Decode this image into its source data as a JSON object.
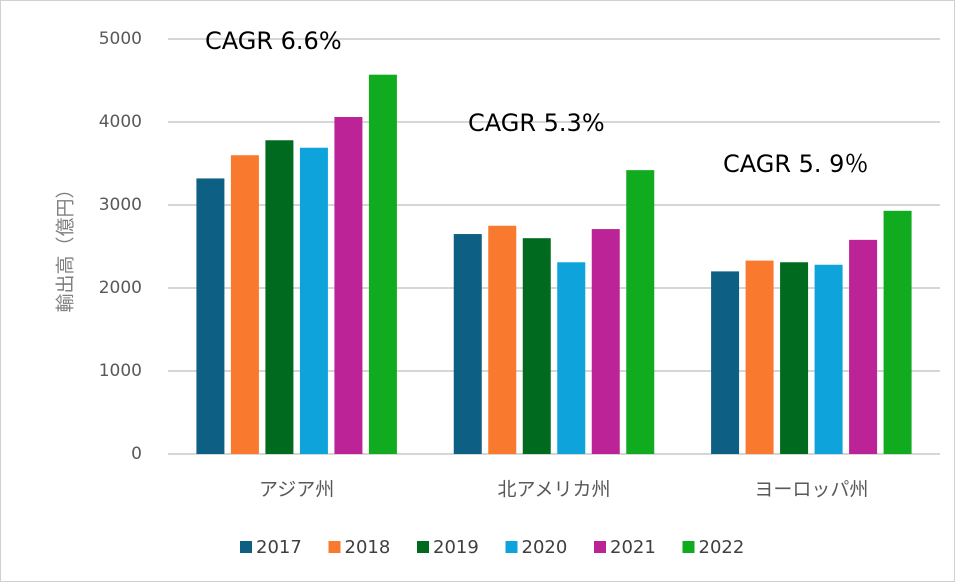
{
  "chart_data": {
    "type": "bar",
    "ylabel": "輸出高（億円）",
    "categories": [
      "アジア州",
      "北アメリカ州",
      "ヨーロッパ州"
    ],
    "series": [
      {
        "name": "2017",
        "color": "#0e5f84",
        "values": [
          3320,
          2650,
          2200
        ]
      },
      {
        "name": "2018",
        "color": "#f97a2e",
        "values": [
          3600,
          2750,
          2330
        ]
      },
      {
        "name": "2019",
        "color": "#006b1e",
        "values": [
          3780,
          2600,
          2310
        ]
      },
      {
        "name": "2020",
        "color": "#0fa3dc",
        "values": [
          3690,
          2310,
          2280
        ]
      },
      {
        "name": "2021",
        "color": "#bb2397",
        "values": [
          4060,
          2710,
          2580
        ]
      },
      {
        "name": "2022",
        "color": "#10ab1f",
        "values": [
          4570,
          3420,
          2930
        ]
      }
    ],
    "annotations": [
      "CAGR 6.6%",
      "CAGR 5.3%",
      "CAGR 5. 9％"
    ],
    "ylim": [
      0,
      5000
    ],
    "yticks": [
      0,
      1000,
      2000,
      3000,
      4000,
      5000
    ],
    "grid": true,
    "legend": "bottom"
  }
}
